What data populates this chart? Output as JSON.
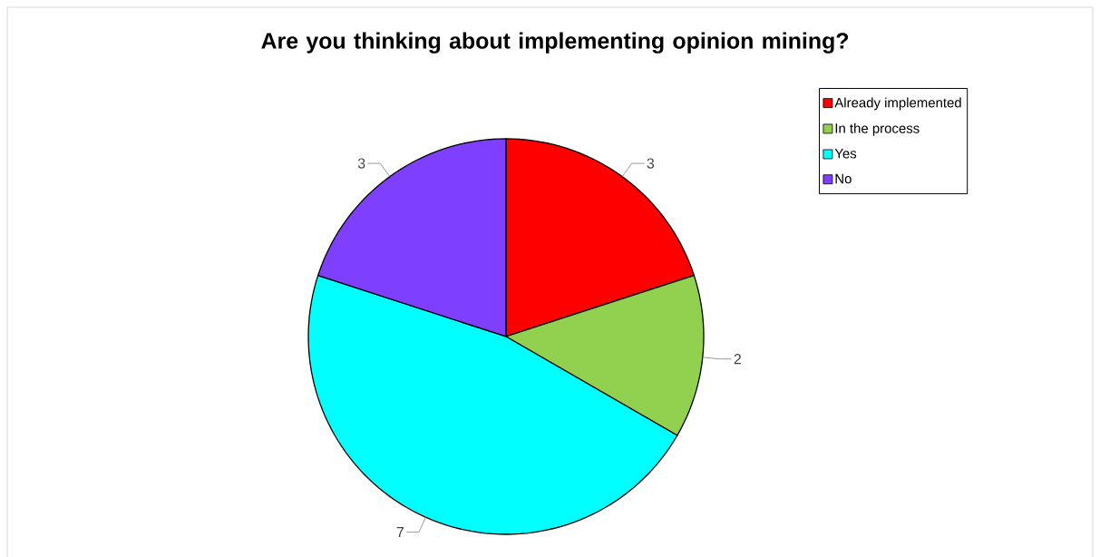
{
  "chart_data": {
    "type": "pie",
    "title": "Are you thinking about implementing opinion mining?",
    "categories": [
      "Already implemented",
      "In the process",
      "Yes",
      "No"
    ],
    "values": [
      3,
      2,
      7,
      3
    ],
    "colors": [
      "#ff0000",
      "#92d050",
      "#00ffff",
      "#7f3fff"
    ],
    "data_labels": true,
    "legend": "top right"
  }
}
